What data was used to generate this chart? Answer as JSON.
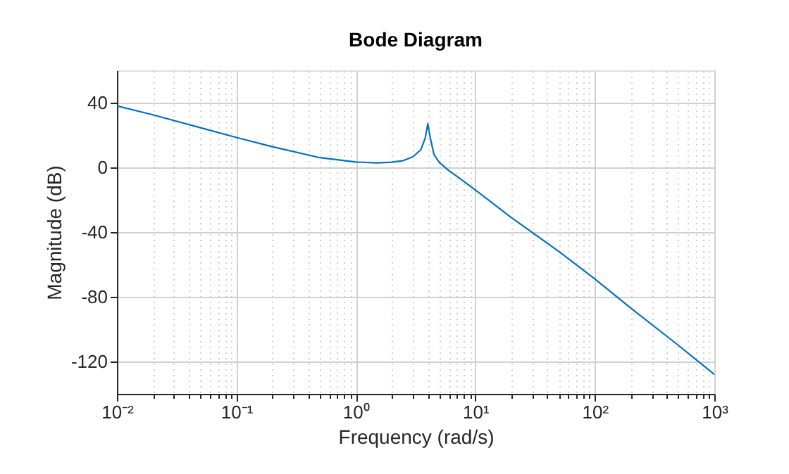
{
  "chart_data": {
    "type": "line",
    "title": "Bode Diagram",
    "xlabel": "Frequency (rad/s)",
    "ylabel": "Magnitude (dB)",
    "log": "x",
    "grid": true,
    "line_style": "solid",
    "marker": "none",
    "xlim": [
      0.01,
      1000
    ],
    "ylim": [
      -140,
      60
    ],
    "xticks": [
      {
        "value": 0.01,
        "label": "10⁻²"
      },
      {
        "value": 0.1,
        "label": "10⁻¹"
      },
      {
        "value": 1,
        "label": "10⁰"
      },
      {
        "value": 10,
        "label": "10¹"
      },
      {
        "value": 100,
        "label": "10²"
      },
      {
        "value": 1000,
        "label": "10³"
      },
      {
        "value": 0.02,
        "label": null
      },
      {
        "value": 0.03,
        "label": null
      },
      {
        "value": 0.04,
        "label": null
      },
      {
        "value": 0.05,
        "label": null
      },
      {
        "value": 0.06,
        "label": null
      },
      {
        "value": 0.07,
        "label": null
      },
      {
        "value": 0.08,
        "label": null
      },
      {
        "value": 0.09,
        "label": null
      },
      {
        "value": 0.2,
        "label": null
      },
      {
        "value": 0.3,
        "label": null
      },
      {
        "value": 0.4,
        "label": null
      },
      {
        "value": 0.5,
        "label": null
      },
      {
        "value": 0.6,
        "label": null
      },
      {
        "value": 0.7,
        "label": null
      },
      {
        "value": 0.8,
        "label": null
      },
      {
        "value": 0.9,
        "label": null
      },
      {
        "value": 2,
        "label": null
      },
      {
        "value": 3,
        "label": null
      },
      {
        "value": 4,
        "label": null
      },
      {
        "value": 5,
        "label": null
      },
      {
        "value": 6,
        "label": null
      },
      {
        "value": 7,
        "label": null
      },
      {
        "value": 8,
        "label": null
      },
      {
        "value": 9,
        "label": null
      },
      {
        "value": 20,
        "label": null
      },
      {
        "value": 30,
        "label": null
      },
      {
        "value": 40,
        "label": null
      },
      {
        "value": 50,
        "label": null
      },
      {
        "value": 60,
        "label": null
      },
      {
        "value": 70,
        "label": null
      },
      {
        "value": 80,
        "label": null
      },
      {
        "value": 90,
        "label": null
      },
      {
        "value": 200,
        "label": null
      },
      {
        "value": 300,
        "label": null
      },
      {
        "value": 400,
        "label": null
      },
      {
        "value": 500,
        "label": null
      },
      {
        "value": 600,
        "label": null
      },
      {
        "value": 700,
        "label": null
      },
      {
        "value": 800,
        "label": null
      },
      {
        "value": 900,
        "label": null
      }
    ],
    "yticks": [
      -120,
      -80,
      -40,
      0,
      40
    ],
    "series": [
      {
        "color": "#0072bd",
        "x": [
          0.01,
          0.02,
          0.05,
          0.1,
          0.2,
          0.5,
          1,
          1.5,
          2,
          2.5,
          3,
          3.5,
          3.8,
          4,
          4.2,
          4.5,
          5,
          6,
          7,
          10,
          20,
          50,
          100,
          200,
          500,
          1000
        ],
        "values": [
          38,
          32.5,
          24.5,
          18.5,
          12.8,
          6,
          3.3,
          2.8,
          3.2,
          4.2,
          6.5,
          11,
          18,
          27,
          18,
          8,
          3,
          -2,
          -5.5,
          -14,
          -31,
          -52,
          -69,
          -87,
          -110,
          -128
        ]
      }
    ]
  }
}
